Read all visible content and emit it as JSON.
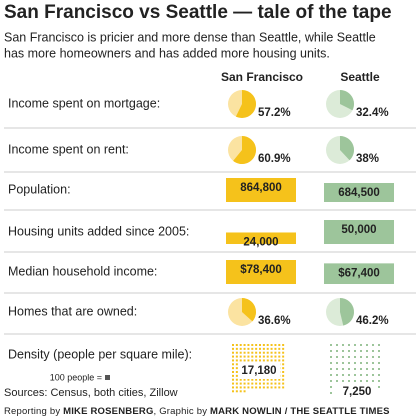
{
  "title": "San Francisco vs Seattle — tale of the tape",
  "subtitle": [
    "San Francisco is pricier and more dense than Seattle, while Seattle",
    "has more homeowners and has added more housing units."
  ],
  "columns": [
    {
      "name": "San Francisco",
      "color": "#f5c21b",
      "light": "#fbe3a1"
    },
    {
      "name": "Seattle",
      "color": "#9dc59b",
      "light": "#dcebd8"
    }
  ],
  "rows": [
    {
      "label": "Income spent on mortgage:",
      "type": "pie",
      "values": [
        57.2,
        32.4
      ],
      "value_labels": [
        "57.2%",
        "32.4%"
      ]
    },
    {
      "label": "Income spent on rent:",
      "type": "pie",
      "values": [
        60.9,
        38
      ],
      "value_labels": [
        "60.9%",
        "38%"
      ]
    },
    {
      "label": "Population:",
      "type": "bar",
      "values": [
        864800,
        684500
      ],
      "value_labels": [
        "864,800",
        "684,500"
      ]
    },
    {
      "label": "Housing units added since 2005:",
      "type": "bar",
      "values": [
        24000,
        50000
      ],
      "value_labels": [
        "24,000",
        "50,000"
      ]
    },
    {
      "label": "Median household income:",
      "type": "bar",
      "values": [
        78400,
        67400
      ],
      "value_labels": [
        "$78,400",
        "$67,400"
      ]
    },
    {
      "label": "Homes that are owned:",
      "type": "pie",
      "values": [
        36.6,
        46.2
      ],
      "value_labels": [
        "36.6%",
        "46.2%"
      ]
    },
    {
      "label": "Density (people per square mile):",
      "type": "dots",
      "values": [
        17180,
        7250
      ],
      "value_labels": [
        "17,180",
        "7,250"
      ],
      "legend": "100 people ="
    }
  ],
  "sources": "Sources: Census, both cities, Zillow",
  "credit": [
    "Reporting by ",
    "MIKE ROSENBERG",
    ", Graphic by ",
    "MARK NOWLIN / THE SEATTLE TIMES"
  ]
}
